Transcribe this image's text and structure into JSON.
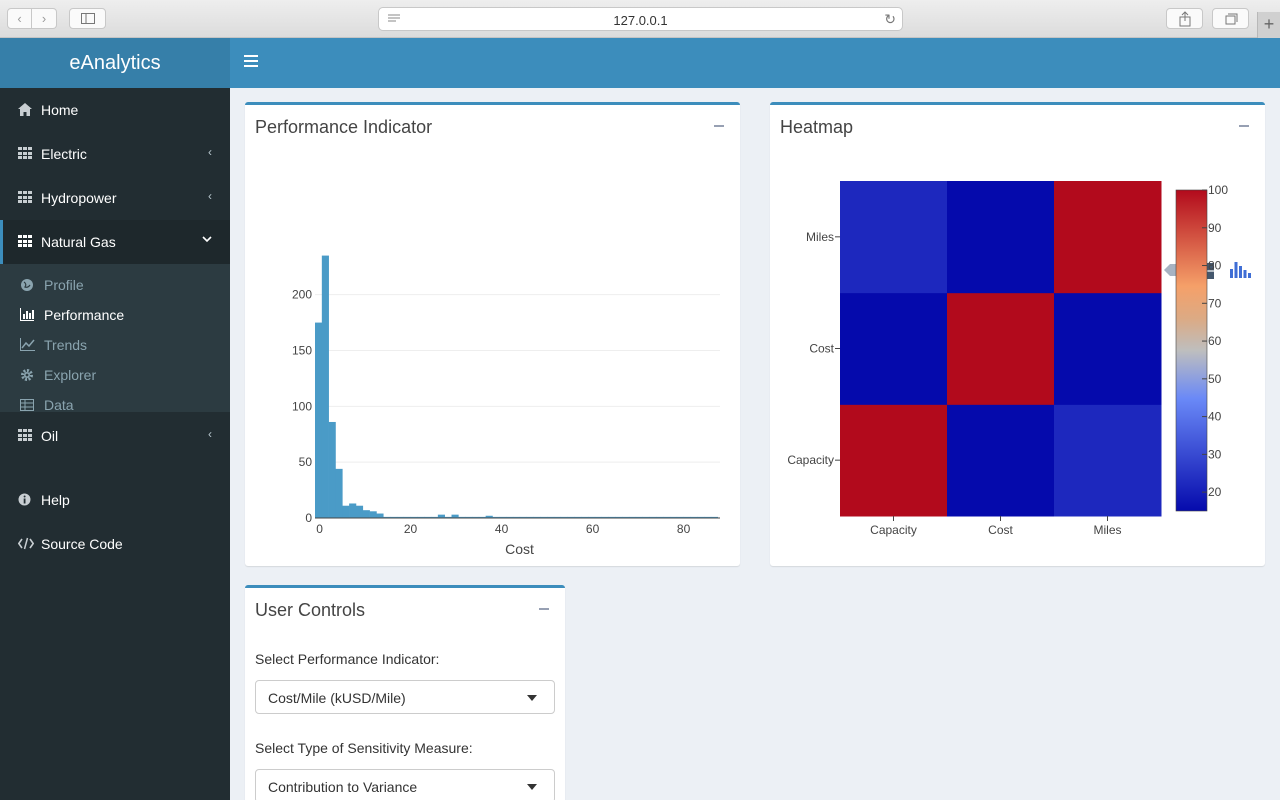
{
  "browser": {
    "url": "127.0.0.1"
  },
  "app": {
    "title": "eAnalytics"
  },
  "sidebar": {
    "items": [
      {
        "label": "Home",
        "icon": "home-icon"
      },
      {
        "label": "Electric",
        "icon": "grid-icon"
      },
      {
        "label": "Hydropower",
        "icon": "grid-icon"
      },
      {
        "label": "Natural Gas",
        "icon": "grid-icon",
        "active": true
      },
      {
        "label": "Oil",
        "icon": "grid-icon"
      },
      {
        "label": "Help",
        "icon": "info-icon"
      },
      {
        "label": "Source Code",
        "icon": "code-icon"
      }
    ],
    "subitems": [
      {
        "label": "Profile",
        "icon": "globe-icon"
      },
      {
        "label": "Performance",
        "icon": "bar-chart-icon",
        "current": true
      },
      {
        "label": "Trends",
        "icon": "line-chart-icon"
      },
      {
        "label": "Explorer",
        "icon": "gear-icon"
      },
      {
        "label": "Data",
        "icon": "table-icon"
      }
    ]
  },
  "panels": {
    "performance_title": "Performance Indicator",
    "heatmap_title": "Heatmap",
    "controls_title": "User Controls"
  },
  "controls": {
    "indicator_label": "Select Performance Indicator:",
    "indicator_value": "Cost/Mile (kUSD/Mile)",
    "sensitivity_label": "Select Type of Sensitivity Measure:",
    "sensitivity_value": "Contribution to Variance"
  },
  "colors": {
    "accent": "#3c8dbc",
    "histogram_bar": "#4a9bc7",
    "heat_low": "#0d1ea8",
    "heat_high": "#b10026"
  },
  "chart_data": [
    {
      "type": "histogram",
      "xlabel": "Cost",
      "ylabel": "",
      "xlim": [
        -1,
        88
      ],
      "ylim": [
        0,
        240
      ],
      "x_ticks": [
        0,
        20,
        40,
        60,
        80
      ],
      "y_ticks": [
        0,
        50,
        100,
        150,
        200
      ],
      "bin_width": 1.5,
      "bins_start": -1,
      "counts": [
        175,
        235,
        86,
        44,
        11,
        13,
        11,
        7,
        6,
        4,
        1,
        1,
        1,
        1,
        1,
        1,
        1,
        1,
        3,
        1,
        3,
        1,
        1,
        1,
        1,
        2,
        1,
        1,
        1,
        1,
        1,
        1,
        1,
        1,
        1,
        1,
        1,
        1,
        1,
        1,
        1,
        1,
        1,
        1,
        1,
        1,
        1,
        1,
        1,
        1,
        1,
        1,
        1,
        1,
        1,
        1,
        1,
        1,
        1
      ],
      "grid": true
    },
    {
      "type": "heatmap",
      "x_categories": [
        "Capacity",
        "Cost",
        "Miles"
      ],
      "y_categories": [
        "Capacity",
        "Cost",
        "Miles"
      ],
      "z": [
        [
          100,
          15,
          22
        ],
        [
          15,
          100,
          15
        ],
        [
          22,
          15,
          100
        ]
      ],
      "zlim": [
        15,
        100
      ],
      "colorbar_ticks": [
        20,
        30,
        40,
        50,
        60,
        70,
        80,
        90,
        100
      ],
      "colorscale": "RdBu"
    }
  ]
}
